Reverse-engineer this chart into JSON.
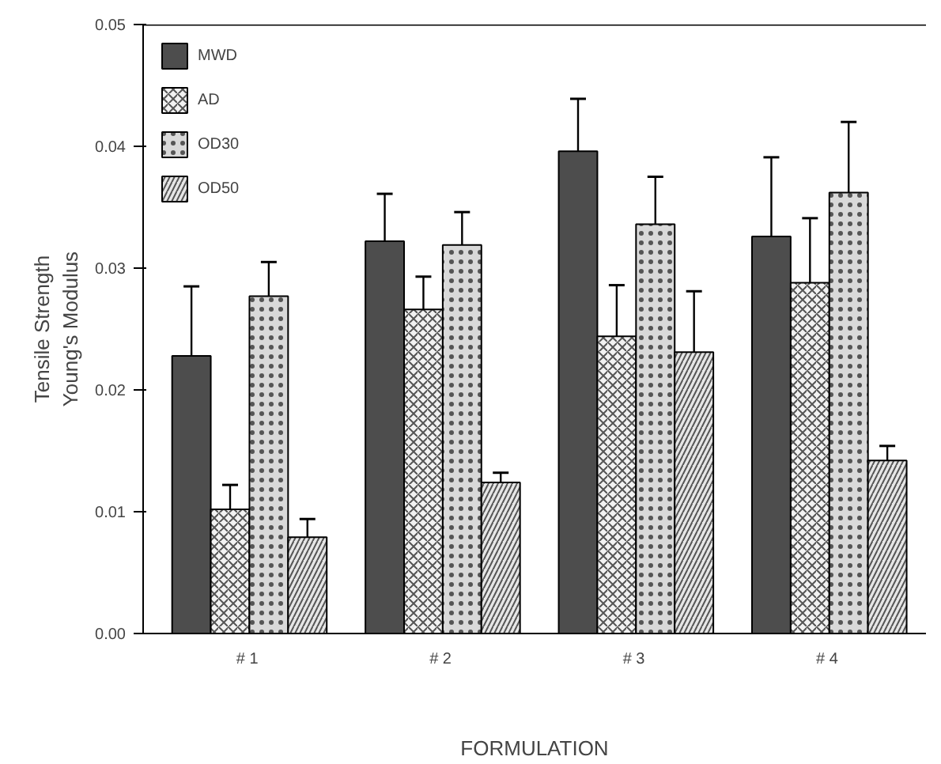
{
  "chart_data": {
    "type": "bar",
    "xlabel": "FORMULATION",
    "ylabel": "Tensile Strength\nYoung's Modulus",
    "categories": [
      "#  1",
      "#  2",
      "#  3",
      "#  4"
    ],
    "series": [
      {
        "name": "MWD",
        "color": "#4d4d4d",
        "values": [
          0.0228,
          0.0322,
          0.0396,
          0.0326
        ],
        "errors": [
          [
            0.0228,
            0.0285
          ],
          [
            0.0322,
            0.0361
          ],
          [
            0.0396,
            0.0439
          ],
          [
            0.0326,
            0.0391
          ]
        ]
      },
      {
        "name": "AD",
        "color": "#f2f2f2",
        "values": [
          0.0102,
          0.0266,
          0.0244,
          0.0288
        ],
        "errors": [
          [
            0.0102,
            0.0122
          ],
          [
            0.0266,
            0.0293
          ],
          [
            0.0244,
            0.0286
          ],
          [
            0.0288,
            0.0341
          ]
        ]
      },
      {
        "name": "OD30",
        "color": "#d9d9d9",
        "values": [
          0.0277,
          0.0319,
          0.0336,
          0.0362
        ],
        "errors": [
          [
            0.0277,
            0.0305
          ],
          [
            0.0319,
            0.0346
          ],
          [
            0.0336,
            0.0375
          ],
          [
            0.0362,
            0.042
          ]
        ]
      },
      {
        "name": "OD50",
        "color": "#e6e6e6",
        "values": [
          0.0079,
          0.0124,
          0.0231,
          0.0142
        ],
        "errors": [
          [
            0.0079,
            0.0094
          ],
          [
            0.0124,
            0.0132
          ],
          [
            0.0231,
            0.0281
          ],
          [
            0.0142,
            0.0154
          ]
        ]
      }
    ],
    "ylim": [
      0,
      0.05
    ],
    "yticks": [
      {
        "value": 0,
        "label": "0.00"
      },
      {
        "value": 0.01,
        "label": "0.01"
      },
      {
        "value": 0.02,
        "label": "0.02"
      },
      {
        "value": 0.03,
        "label": "0.03"
      },
      {
        "value": 0.04,
        "label": "0.04"
      },
      {
        "value": 0.05,
        "label": "0.05"
      }
    ],
    "grid": false,
    "legend": "top left"
  }
}
